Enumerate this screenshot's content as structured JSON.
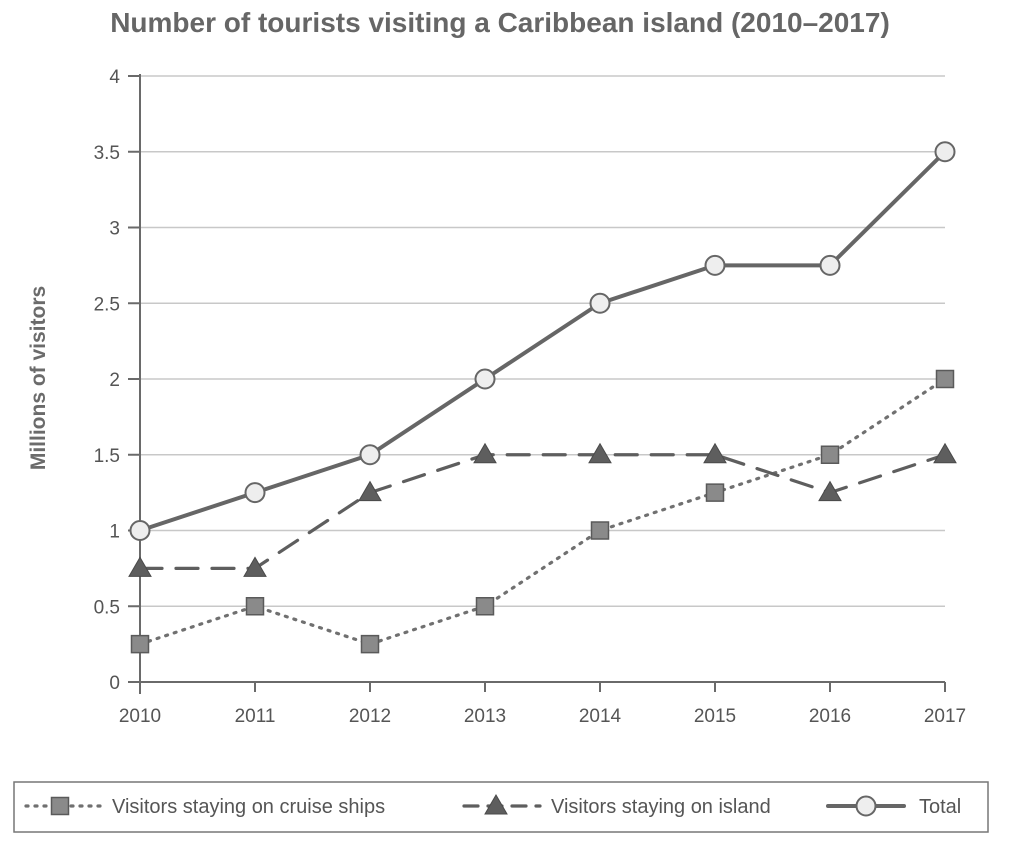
{
  "chart_data": {
    "type": "line",
    "title": "Number of tourists visiting a Caribbean island (2010–2017)",
    "xlabel": "",
    "ylabel": "Millions of visitors",
    "x": [
      "2010",
      "2011",
      "2012",
      "2013",
      "2014",
      "2015",
      "2016",
      "2017"
    ],
    "y_ticks": [
      "0",
      "0.5",
      "1",
      "1.5",
      "2",
      "2.5",
      "3",
      "3.5",
      "4"
    ],
    "ylim": [
      0,
      4
    ],
    "grid": true,
    "legend_position": "bottom",
    "series": [
      {
        "name": "Visitors staying on cruise ships",
        "values": [
          0.25,
          0.5,
          0.25,
          0.5,
          1.0,
          1.25,
          1.5,
          2.0
        ],
        "line_style": "dotted",
        "marker": "square",
        "color": "#707070"
      },
      {
        "name": "Visitors staying on island",
        "values": [
          0.75,
          0.75,
          1.25,
          1.5,
          1.5,
          1.5,
          1.25,
          1.5
        ],
        "line_style": "dashed",
        "marker": "triangle",
        "color": "#5e5e5e"
      },
      {
        "name": "Total",
        "values": [
          1.0,
          1.25,
          1.5,
          2.0,
          2.5,
          2.75,
          2.75,
          3.5
        ],
        "line_style": "solid",
        "marker": "circle",
        "color": "#666666"
      }
    ]
  }
}
